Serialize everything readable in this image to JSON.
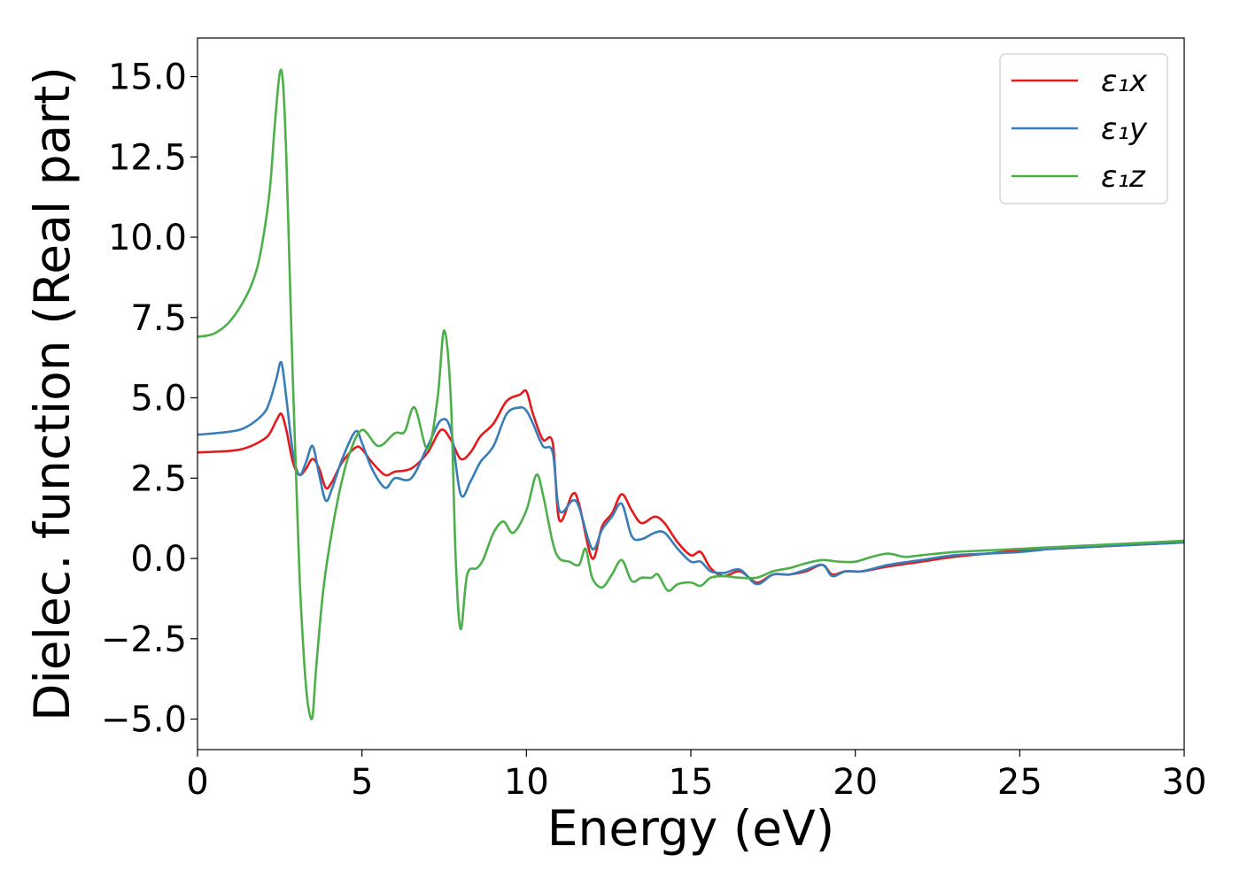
{
  "chart_data": {
    "type": "line",
    "title": "",
    "xlabel": "Energy (eV)",
    "ylabel": "Dielec. function (Real part)",
    "xlim": [
      0,
      30
    ],
    "ylim": [
      -5.95,
      16.2
    ],
    "xticks": [
      0,
      5,
      10,
      15,
      20,
      25,
      30
    ],
    "xtick_labels": [
      "0",
      "5",
      "10",
      "15",
      "20",
      "25",
      "30"
    ],
    "yticks": [
      -5.0,
      -2.5,
      0.0,
      2.5,
      5.0,
      7.5,
      10.0,
      12.5,
      15.0
    ],
    "ytick_labels": [
      "−5.0",
      "−2.5",
      "0.0",
      "2.5",
      "5.0",
      "7.5",
      "10.0",
      "12.5",
      "15.0"
    ],
    "grid": false,
    "legend_position": "top-right",
    "series": [
      {
        "name": "ε₁x",
        "color": "#e41a1c",
        "x": [
          0,
          1.0,
          1.5,
          2.0,
          2.2,
          2.4,
          2.55,
          2.7,
          2.9,
          3.1,
          3.3,
          3.5,
          3.7,
          3.9,
          4.1,
          4.4,
          4.8,
          5.0,
          5.3,
          5.7,
          6.0,
          6.5,
          7.0,
          7.4,
          7.7,
          8.0,
          8.3,
          8.6,
          9.0,
          9.4,
          9.8,
          10.0,
          10.2,
          10.5,
          10.8,
          11.0,
          11.4,
          11.6,
          12.0,
          12.3,
          12.6,
          12.9,
          13.2,
          13.5,
          13.9,
          14.2,
          14.6,
          15.0,
          15.3,
          15.6,
          16.0,
          16.5,
          17.0,
          17.5,
          18.0,
          18.5,
          19.0,
          19.3,
          19.7,
          20.2,
          21.0,
          22.0,
          23.0,
          24.0,
          25.0,
          26.0,
          27.0,
          28.0,
          29.0,
          30.0
        ],
        "values": [
          3.3,
          3.35,
          3.45,
          3.7,
          3.9,
          4.3,
          4.5,
          4.0,
          3.0,
          2.6,
          2.8,
          3.1,
          2.8,
          2.2,
          2.4,
          3.0,
          3.45,
          3.4,
          3.0,
          2.6,
          2.7,
          2.8,
          3.3,
          4.0,
          3.7,
          3.1,
          3.3,
          3.8,
          4.2,
          4.9,
          5.1,
          5.2,
          4.5,
          3.7,
          3.6,
          1.2,
          2.0,
          1.7,
          0.0,
          1.0,
          1.4,
          2.0,
          1.5,
          1.1,
          1.3,
          1.1,
          0.5,
          0.1,
          0.2,
          -0.3,
          -0.55,
          -0.4,
          -0.75,
          -0.5,
          -0.5,
          -0.4,
          -0.2,
          -0.5,
          -0.4,
          -0.4,
          -0.25,
          -0.1,
          0.05,
          0.15,
          0.25,
          0.3,
          0.35,
          0.4,
          0.45,
          0.5
        ]
      },
      {
        "name": "ε₁y",
        "color": "#377eb8",
        "x": [
          0,
          1.0,
          1.5,
          2.0,
          2.2,
          2.4,
          2.55,
          2.7,
          2.9,
          3.1,
          3.3,
          3.5,
          3.7,
          3.9,
          4.1,
          4.4,
          4.8,
          5.0,
          5.3,
          5.7,
          6.0,
          6.5,
          7.0,
          7.4,
          7.7,
          8.0,
          8.3,
          8.6,
          9.0,
          9.4,
          9.8,
          10.0,
          10.2,
          10.5,
          10.8,
          11.0,
          11.4,
          11.6,
          12.0,
          12.3,
          12.6,
          12.9,
          13.2,
          13.5,
          13.9,
          14.2,
          14.6,
          15.0,
          15.3,
          15.6,
          16.0,
          16.5,
          17.0,
          17.5,
          18.0,
          18.5,
          19.0,
          19.3,
          19.7,
          20.2,
          21.0,
          22.0,
          23.0,
          24.0,
          25.0,
          26.0,
          27.0,
          28.0,
          29.0,
          30.0
        ],
        "values": [
          3.85,
          3.95,
          4.1,
          4.5,
          4.9,
          5.6,
          6.1,
          5.0,
          3.3,
          2.6,
          3.0,
          3.5,
          2.6,
          1.8,
          2.2,
          3.1,
          3.95,
          3.6,
          2.8,
          2.2,
          2.5,
          2.5,
          3.5,
          4.3,
          4.0,
          2.0,
          2.4,
          3.0,
          3.5,
          4.5,
          4.7,
          4.6,
          4.2,
          3.5,
          3.3,
          1.5,
          1.8,
          1.6,
          0.3,
          0.9,
          1.3,
          1.7,
          0.7,
          0.6,
          0.8,
          0.8,
          0.3,
          -0.1,
          -0.1,
          -0.4,
          -0.45,
          -0.35,
          -0.8,
          -0.5,
          -0.5,
          -0.35,
          -0.2,
          -0.55,
          -0.4,
          -0.4,
          -0.2,
          -0.05,
          0.1,
          0.15,
          0.2,
          0.3,
          0.35,
          0.4,
          0.45,
          0.5
        ]
      },
      {
        "name": "ε₁z",
        "color": "#4daf4a",
        "x": [
          0,
          0.5,
          1.0,
          1.5,
          1.8,
          2.0,
          2.2,
          2.35,
          2.5,
          2.6,
          2.7,
          2.8,
          2.9,
          3.0,
          3.1,
          3.2,
          3.3,
          3.4,
          3.5,
          3.6,
          3.8,
          4.0,
          4.3,
          4.6,
          5.0,
          5.5,
          6.0,
          6.3,
          6.6,
          7.0,
          7.3,
          7.5,
          7.7,
          7.85,
          8.0,
          8.2,
          8.5,
          8.7,
          9.0,
          9.3,
          9.6,
          10.0,
          10.3,
          10.5,
          10.8,
          11.0,
          11.3,
          11.6,
          11.8,
          12.0,
          12.3,
          12.6,
          12.9,
          13.2,
          13.5,
          13.8,
          14.0,
          14.3,
          14.6,
          15.0,
          15.3,
          15.6,
          16.0,
          16.5,
          17.0,
          17.5,
          18.0,
          18.5,
          19.0,
          19.5,
          20.0,
          20.5,
          21.0,
          21.5,
          22.0,
          23.0,
          24.0,
          25.0,
          26.0,
          27.0,
          28.0,
          29.0,
          30.0
        ],
        "values": [
          6.9,
          7.0,
          7.4,
          8.2,
          9.0,
          10.0,
          11.5,
          13.5,
          15.1,
          14.8,
          12.5,
          9.0,
          5.5,
          2.5,
          -0.5,
          -2.5,
          -4.0,
          -4.8,
          -4.9,
          -3.5,
          -1.2,
          0.3,
          2.0,
          3.2,
          4.0,
          3.5,
          3.9,
          3.95,
          4.7,
          3.4,
          5.0,
          7.1,
          5.0,
          0.0,
          -2.2,
          -0.5,
          -0.3,
          0.0,
          0.8,
          1.15,
          0.8,
          1.5,
          2.6,
          2.0,
          0.5,
          0.0,
          -0.1,
          -0.2,
          0.3,
          -0.6,
          -0.9,
          -0.5,
          -0.05,
          -0.7,
          -0.6,
          -0.6,
          -0.5,
          -1.0,
          -0.8,
          -0.75,
          -0.85,
          -0.6,
          -0.55,
          -0.6,
          -0.6,
          -0.4,
          -0.3,
          -0.15,
          -0.05,
          -0.1,
          -0.1,
          0.05,
          0.15,
          0.05,
          0.1,
          0.2,
          0.25,
          0.3,
          0.35,
          0.4,
          0.45,
          0.5,
          0.55
        ]
      }
    ]
  }
}
